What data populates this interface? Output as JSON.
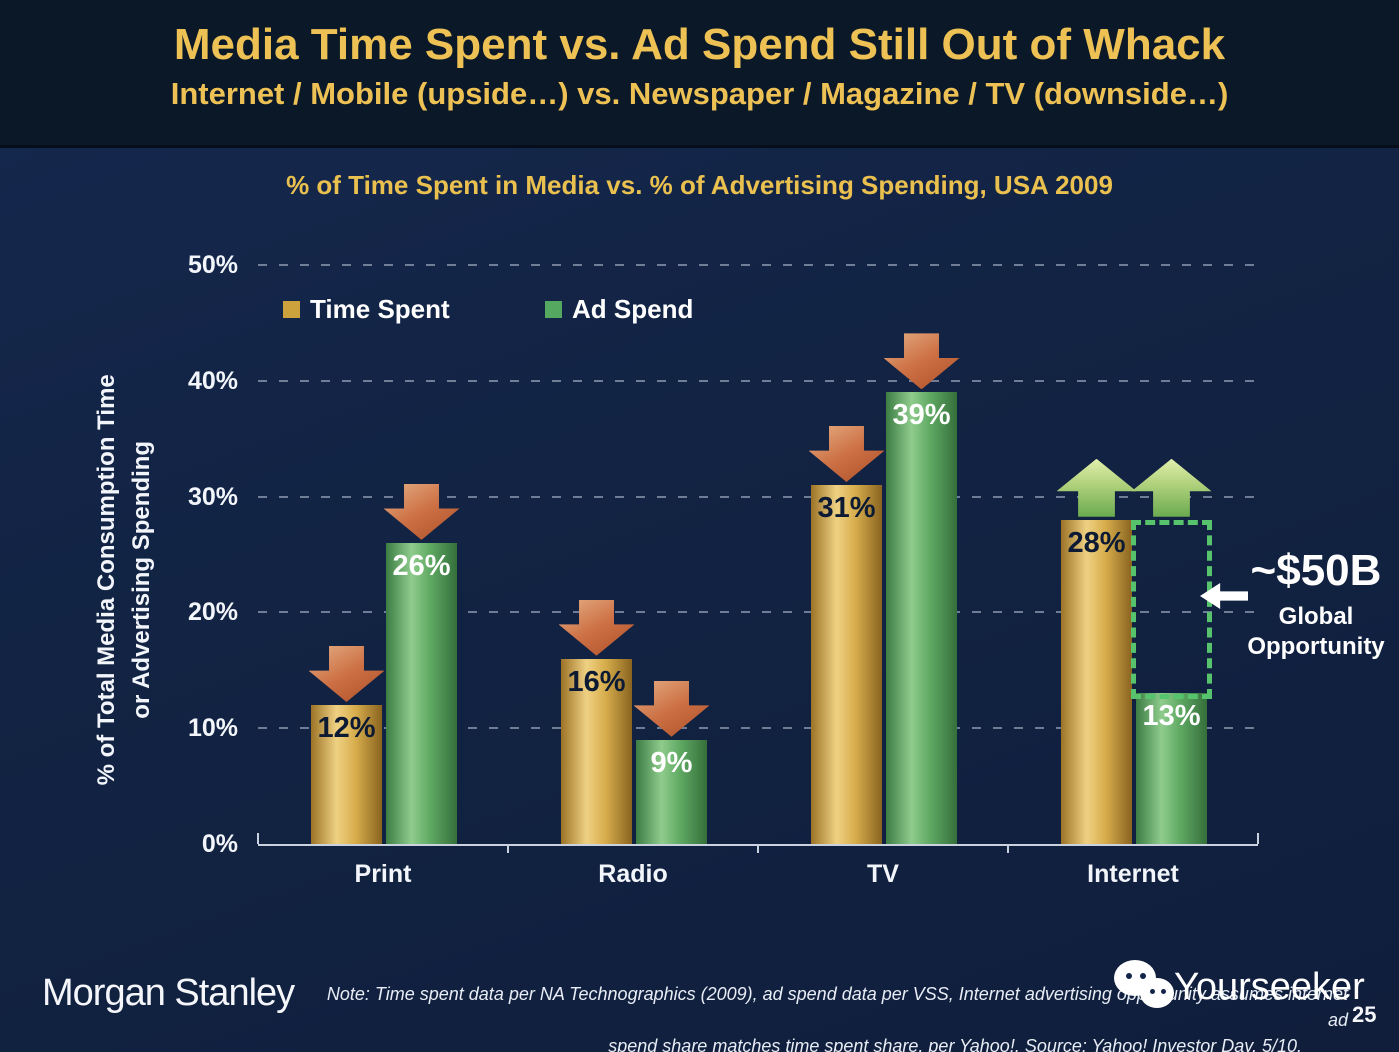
{
  "header": {
    "title": "Media Time Spent vs. Ad Spend Still Out of Whack",
    "subtitle": "Internet / Mobile (upside…) vs. Newspaper / Magazine / TV (downside…)"
  },
  "chart_data": {
    "type": "bar",
    "title": "% of Time Spent in Media vs. % of Advertising Spending, USA 2009",
    "categories": [
      "Print",
      "Radio",
      "TV",
      "Internet"
    ],
    "series": [
      {
        "name": "Time Spent",
        "color": "#cda23d",
        "values": [
          12,
          16,
          31,
          28
        ],
        "trend_arrows": [
          "down",
          "down",
          "down",
          "up"
        ]
      },
      {
        "name": "Ad Spend",
        "color": "#55a85f",
        "values": [
          26,
          9,
          39,
          13
        ],
        "trend_arrows": [
          "down",
          "down",
          "down",
          "up"
        ]
      }
    ],
    "ylabel": "% of Total Media Consumption Time\nor Advertising Spending",
    "yticks": [
      "0%",
      "10%",
      "20%",
      "30%",
      "40%",
      "50%"
    ],
    "ylim": [
      0,
      50
    ],
    "grid": "dashed-horizontal",
    "legend_position": "top-left",
    "annotation": {
      "value": "~$50B",
      "label": "Global Opportunity",
      "category": "Internet",
      "series": "Ad Spend",
      "range": [
        13,
        28
      ]
    }
  },
  "footer": {
    "brand": "Morgan Stanley",
    "note_line1": "Note: Time spent data per NA Technographics (2009), ad spend data per VSS, Internet advertising opportunity assumes internet ad",
    "note_line2": "spend share matches time spent share, per Yahoo!. Source: Yahoo! Investor Day, 5/10.",
    "watermark": "Yourseeker",
    "page_number": "25"
  }
}
